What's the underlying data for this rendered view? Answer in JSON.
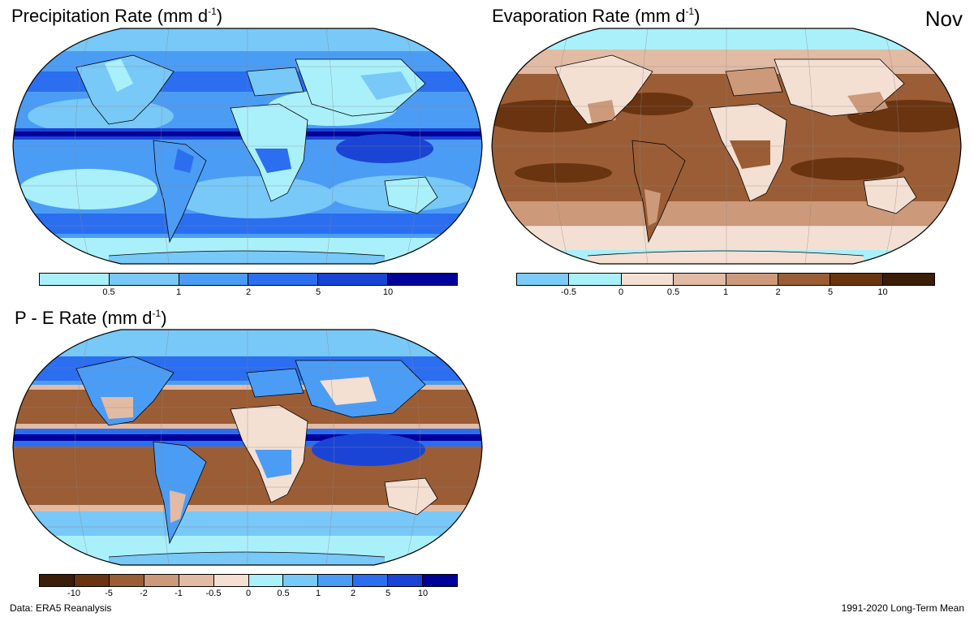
{
  "month": "Nov",
  "panels": {
    "precip": {
      "title_main": "Precipitation Rate (mm  d",
      "title_exp": "-1",
      "title_close": ")",
      "colors": [
        "#aaf0fb",
        "#78c8f8",
        "#4b9cf5",
        "#2b6ef0",
        "#1a44d5",
        "#00009a"
      ],
      "ticks": [
        "0.5",
        "1",
        "2",
        "5",
        "10"
      ]
    },
    "evap": {
      "title_main": "Evaporation Rate (mm  d",
      "title_exp": "-1",
      "title_close": ")",
      "colors": [
        "#7dcbf8",
        "#aaf0fb",
        "#f4dfd3",
        "#e2bba5",
        "#cc9a7a",
        "#9a5d35",
        "#6a3410",
        "#3c1d07"
      ],
      "ticks": [
        "-0.5",
        "0",
        "0.5",
        "1",
        "2",
        "5",
        "10"
      ]
    },
    "pe": {
      "title_main": "P - E Rate (mm  d",
      "title_exp": "-1",
      "title_close": ")",
      "colors": [
        "#3c1d07",
        "#6a3410",
        "#9a5d35",
        "#cc9a7a",
        "#e2bba5",
        "#f4dfd3",
        "#aaf0fb",
        "#78c8f8",
        "#4b9cf5",
        "#2b6ef0",
        "#1a44d5",
        "#00009a"
      ],
      "ticks": [
        "-10",
        "-5",
        "-2",
        "-1",
        "-0.5",
        "0",
        "0.5",
        "1",
        "2",
        "5",
        "10"
      ]
    }
  },
  "footer": {
    "source": "Data: ERA5 Reanalysis",
    "period": "1991-2020 Long-Term Mean"
  }
}
